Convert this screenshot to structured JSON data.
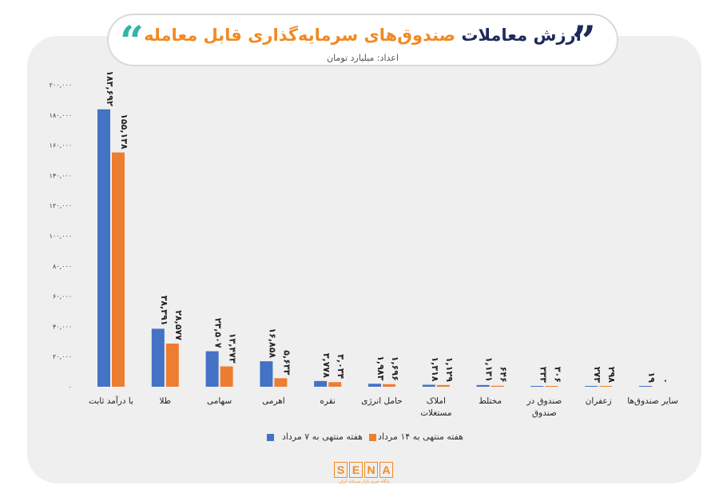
{
  "header": {
    "title_part1": "ارزش معاملات",
    "title_part2": "صندوق‌های سرمایه‌گذاری قابل معامله",
    "subtitle": "اعداد: میلیارد تومان",
    "quote_color_left": "#2fb5aa",
    "quote_color_right": "#1f2a5c"
  },
  "logo": {
    "letters": [
      "S",
      "E",
      "N",
      "A"
    ],
    "tagline": "پایگاه خبری بازار سرمایه ایران",
    "color": "#f08a24"
  },
  "chart_data": {
    "type": "bar",
    "categories": [
      "با درآمد ثابت",
      "طلا",
      "سهامی",
      "اهرمی",
      "نقره",
      "حامل انرژی",
      "املاک مستغلات",
      "مختلط",
      "صندوق در صندوق",
      "زعفران",
      "سایر صندوق‌ها"
    ],
    "category_lines": [
      [
        "با درآمد ثابت"
      ],
      [
        "طلا"
      ],
      [
        "سهامی"
      ],
      [
        "اهرمی"
      ],
      [
        "نقره"
      ],
      [
        "حامل انرژی"
      ],
      [
        "املاک",
        "مستغلات"
      ],
      [
        "مختلط"
      ],
      [
        "صندوق در",
        "صندوق"
      ],
      [
        "زعفران"
      ],
      [
        "سایر صندوق‌ها"
      ]
    ],
    "series": [
      {
        "name": "هفته منتهی به ۷ مرداد",
        "color": "#4472c4",
        "values": [
          183692,
          38391,
          23507,
          16858,
          3778,
          1983,
          1318,
          1131,
          333,
          273,
          19
        ],
        "labels": [
          "۱۸۳,۶۹۲",
          "۳۸,۳۹۱",
          "۲۳,۵۰۷",
          "۱۶,۸۵۸",
          "۳,۷۷۸",
          "۱,۹۸۳",
          "۱,۳۱۸",
          "۱,۱۳۱",
          "۳۳۳",
          "۲۷۳",
          "۱۹"
        ]
      },
      {
        "name": "هفته منتهی به ۱۴ مرداد",
        "color": "#ed7d31",
        "values": [
          155138,
          28577,
          13473,
          5633,
          3034,
          1696,
          1129,
          646,
          306,
          298,
          0
        ],
        "labels": [
          "۱۵۵,۱۳۸",
          "۲۸,۵۷۷",
          "۱۳,۴۷۳",
          "۵,۶۳۳",
          "۳,۰۳۴",
          "۱,۶۹۶",
          "۱,۱۲۹",
          "۶۴۶",
          "۳۰۶",
          "۲۹۸",
          "۰"
        ]
      }
    ],
    "yticks": [
      "۰",
      "۲۰,۰۰۰",
      "۴۰,۰۰۰",
      "۶۰,۰۰۰",
      "۸۰,۰۰۰",
      "۱۰۰,۰۰۰",
      "۱۲۰,۰۰۰",
      "۱۴۰,۰۰۰",
      "۱۶۰,۰۰۰",
      "۱۸۰,۰۰۰",
      "۲۰۰,۰۰۰"
    ],
    "ylim": [
      0,
      200000
    ],
    "grid": false,
    "legend_position": "bottom"
  }
}
